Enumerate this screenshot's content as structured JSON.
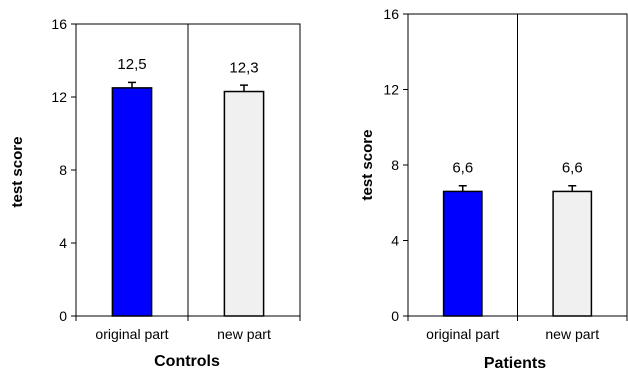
{
  "chart_data": [
    {
      "type": "bar",
      "title": "Controls",
      "xlabel": "",
      "ylabel": "test score",
      "categories": [
        "original part",
        "new part"
      ],
      "values": [
        12.5,
        12.3
      ],
      "value_labels": [
        "12,5",
        "12,3"
      ],
      "error": [
        0.3,
        0.35
      ],
      "colors": [
        "#0000ff",
        "#f0f0f0"
      ],
      "ylim": [
        0,
        16
      ],
      "yticks": [
        0,
        4,
        8,
        12,
        16
      ],
      "grid": false
    },
    {
      "type": "bar",
      "title": "Patients",
      "xlabel": "",
      "ylabel": "test score",
      "categories": [
        "original part",
        "new part"
      ],
      "values": [
        6.6,
        6.6
      ],
      "value_labels": [
        "6,6",
        "6,6"
      ],
      "error": [
        0.3,
        0.3
      ],
      "colors": [
        "#0000ff",
        "#f0f0f0"
      ],
      "ylim": [
        0,
        16
      ],
      "yticks": [
        0,
        4,
        8,
        12,
        16
      ],
      "grid": false
    }
  ]
}
